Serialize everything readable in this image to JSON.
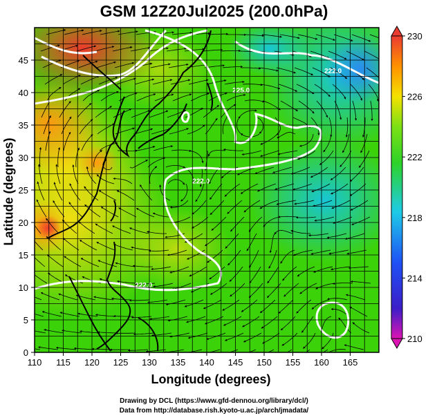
{
  "title": "GSM 12Z20Jul2025 (200.0hPa)",
  "xlabel": "Longitude (degrees)",
  "ylabel": "Latitude  (degrees)",
  "credit_line1": "Drawing by DCL (https://www.gfd-dennou.org/library/dcl/)",
  "credit_line2": "Data from http://database.rish.kyoto-u.ac.jp/arch/jmadata/",
  "map": {
    "lon_range": [
      110,
      170
    ],
    "lat_range": [
      0,
      50
    ],
    "lon_ticks": [
      "110",
      "115",
      "120",
      "125",
      "130",
      "135",
      "140",
      "145",
      "150",
      "155",
      "160",
      "165"
    ],
    "lat_ticks": [
      "0",
      "5",
      "10",
      "15",
      "20",
      "25",
      "30",
      "35",
      "40",
      "45"
    ],
    "contour_labels": [
      {
        "text": "225.0",
        "lon": 146,
        "lat": 40
      },
      {
        "text": "222.0",
        "lon": 139,
        "lat": 26
      },
      {
        "text": "222.0",
        "lon": 129,
        "lat": 10
      },
      {
        "text": "222.0",
        "lon": 162,
        "lat": 43
      }
    ]
  },
  "colorbar": {
    "labels": [
      "230",
      "226",
      "222",
      "218",
      "214",
      "210"
    ],
    "range": [
      210,
      230
    ]
  },
  "colors": {
    "warm": "#f03c28",
    "orange": "#ff9600",
    "yellow": "#f5dc00",
    "green": "#3cd20a",
    "cyan": "#19c8c8",
    "blue": "#1478ff"
  }
}
